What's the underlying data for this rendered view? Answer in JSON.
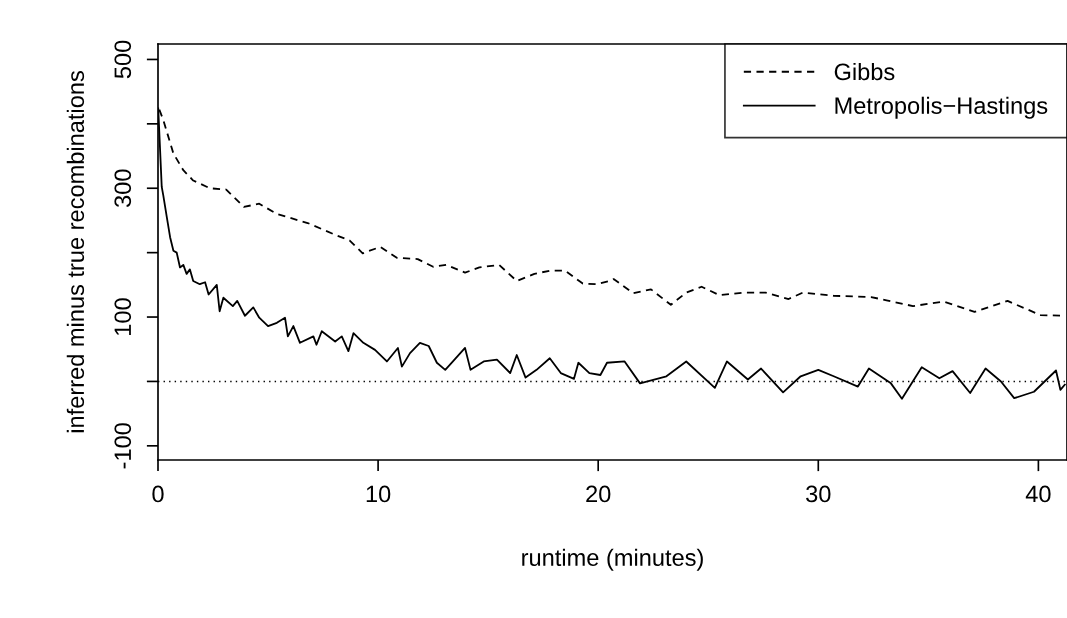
{
  "chart_data": {
    "type": "line",
    "xlabel": "runtime (minutes)",
    "ylabel": "inferred minus true recombinations",
    "xlim": [
      0,
      41.3
    ],
    "ylim": [
      -122,
      524
    ],
    "xticks": [
      0,
      10,
      20,
      30,
      40
    ],
    "yticks": [
      -100,
      {
        "value": 0,
        "label": null
      },
      100,
      {
        "value": 200,
        "label": null
      },
      300,
      {
        "value": 400,
        "label": null
      },
      500
    ],
    "legend": "top right",
    "grid": false,
    "marker": "none",
    "ref_lines": [
      {
        "axis": "y",
        "value": 0,
        "color": "#000000",
        "line_style": "dotted"
      }
    ],
    "series": [
      {
        "name": "Gibbs",
        "color": "#000000",
        "line_style": "dashed",
        "x": [
          0.06,
          0.24,
          0.7,
          1.15,
          1.6,
          2.36,
          3.1,
          3.9,
          4.6,
          5.4,
          6.8,
          8.1,
          8.7,
          9.3,
          10.1,
          10.85,
          11.8,
          12.5,
          13.1,
          13.95,
          14.6,
          15.5,
          16.3,
          17.1,
          17.8,
          18.5,
          19.3,
          19.9,
          20.5,
          20.7,
          21.6,
          22.4,
          23.3,
          24.0,
          24.7,
          25.5,
          26.6,
          27.6,
          28.65,
          29.3,
          30.7,
          32.4,
          33.1,
          34.3,
          35.7,
          37.1,
          38.6,
          40.1,
          41.2
        ],
        "values": [
          422,
          406,
          354,
          328,
          312,
          300,
          298,
          271,
          276,
          260,
          246,
          227,
          219,
          199,
          209,
          192,
          190,
          178,
          181,
          169,
          177,
          181,
          156,
          167,
          172,
          172,
          152,
          151,
          156,
          159,
          137,
          143,
          119,
          138,
          147,
          134,
          138,
          138,
          128,
          138,
          133,
          131,
          126,
          117,
          124,
          108,
          125,
          103,
          102
        ]
      },
      {
        "name": "Metropolis−Hastings",
        "color": "#000000",
        "line_style": "solid",
        "x": [
          0.01,
          0.17,
          0.24,
          0.4,
          0.55,
          0.7,
          0.85,
          1.0,
          1.15,
          1.3,
          1.45,
          1.6,
          1.9,
          2.14,
          2.3,
          2.67,
          2.8,
          2.97,
          3.4,
          3.6,
          3.95,
          4.33,
          4.6,
          5.0,
          5.4,
          5.77,
          5.9,
          6.15,
          6.45,
          7.06,
          7.2,
          7.44,
          8.05,
          8.35,
          8.65,
          8.88,
          9.33,
          9.86,
          10.4,
          10.9,
          11.08,
          11.45,
          11.9,
          12.3,
          12.67,
          13.05,
          13.4,
          13.95,
          14.2,
          14.8,
          15.4,
          16.0,
          16.3,
          16.7,
          17.2,
          17.8,
          18.3,
          18.9,
          19.1,
          19.6,
          20.1,
          20.4,
          21.2,
          21.9,
          23.1,
          24.0,
          25.3,
          25.85,
          26.8,
          27.4,
          28.4,
          29.2,
          30.0,
          30.7,
          31.8,
          32.3,
          33.3,
          33.8,
          34.7,
          35.5,
          36.1,
          36.9,
          37.6,
          38.3,
          38.9,
          39.8,
          40.8,
          41.0,
          41.2
        ],
        "values": [
          424,
          302,
          289,
          255,
          224,
          203,
          200,
          177,
          181,
          167,
          174,
          156,
          151,
          154,
          135,
          150,
          109,
          130,
          117,
          125,
          102,
          115,
          99,
          86,
          91,
          99,
          70,
          86,
          60,
          70,
          57,
          78,
          62,
          70,
          47,
          75,
          60,
          49,
          31,
          52,
          23,
          44,
          60,
          55,
          29,
          18,
          31,
          52,
          18,
          31,
          34,
          13,
          41,
          6,
          18,
          36,
          13,
          4,
          29,
          13,
          10,
          29,
          31,
          -3,
          8,
          31,
          -10,
          31,
          3,
          20,
          -17,
          8,
          18,
          8,
          -8,
          20,
          -3,
          -27,
          22,
          5,
          16,
          -18,
          20,
          0,
          -26,
          -16,
          17,
          -13,
          -5
        ]
      }
    ]
  }
}
